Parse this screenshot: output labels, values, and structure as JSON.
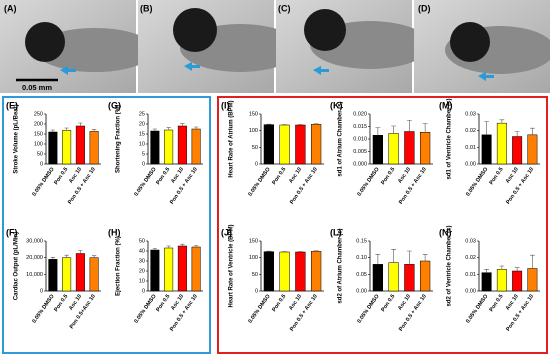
{
  "panels": [
    "(A)",
    "(B)",
    "(C)",
    "(D)"
  ],
  "scale_bar": "0.05 mm",
  "chart_data": [
    {
      "type": "bar",
      "label": "(E)",
      "y_label": "Stroke Volume (pL/Beat)",
      "categories": [
        "0.05% DMSO",
        "Pon 0.5",
        "Asc 10",
        "Pon 0.5 + Asc 10"
      ],
      "values": [
        160,
        168,
        190,
        163
      ],
      "errors": [
        10,
        12,
        15,
        10
      ],
      "colors": [
        "#000000",
        "#ffff00",
        "#ff0000",
        "#ff7f00"
      ],
      "ylim": [
        0,
        250
      ],
      "yticks": [
        0,
        50,
        100,
        150,
        200,
        250
      ]
    },
    {
      "type": "bar",
      "label": "(G)",
      "y_label": "Shortening Fraction (%)",
      "categories": [
        "0.05% DMSO",
        "Pon 0.5",
        "Asc 10",
        "Pon 0.5 + Asc 10"
      ],
      "values": [
        16.5,
        17,
        19,
        17.5
      ],
      "errors": [
        1,
        1.2,
        1.2,
        1
      ],
      "colors": [
        "#000000",
        "#ffff00",
        "#ff0000",
        "#ff7f00"
      ],
      "ylim": [
        0,
        25
      ],
      "yticks": [
        0,
        5,
        10,
        15,
        20,
        25
      ]
    },
    {
      "type": "bar",
      "label": "(F)",
      "y_label": "Cardiac Output (pL/Min)",
      "categories": [
        "0.05% DMSO",
        "Pon 0.5",
        "Asc 10",
        "Pon 0.5+Asc 10"
      ],
      "values": [
        19000,
        20000,
        22500,
        20000
      ],
      "errors": [
        1200,
        1500,
        1800,
        1200
      ],
      "colors": [
        "#000000",
        "#ffff00",
        "#ff0000",
        "#ff7f00"
      ],
      "ylim": [
        0,
        30000
      ],
      "yticks": [
        0,
        {
          "value": 10000,
          "label": "10,000"
        },
        {
          "value": 20000,
          "label": "20,000"
        },
        {
          "value": 30000,
          "label": "30,000"
        }
      ]
    },
    {
      "type": "bar",
      "label": "(H)",
      "y_label": "Ejection Fraction (%)",
      "categories": [
        "0.05% DMSO",
        "Pon 0.5",
        "Asc 10",
        "Pon 0.5 + Asc 10"
      ],
      "values": [
        41,
        43,
        45,
        44
      ],
      "errors": [
        1.5,
        2,
        1.8,
        1.5
      ],
      "colors": [
        "#000000",
        "#ffff00",
        "#ff0000",
        "#ff7f00"
      ],
      "ylim": [
        0,
        50
      ],
      "yticks": [
        0,
        10,
        20,
        30,
        40,
        50
      ]
    },
    {
      "type": "bar",
      "label": "(I)",
      "y_label": "Heart Rate of Atrium (BPM)",
      "categories": [
        "0.05% DMSO",
        "Pon 0.5",
        "Asc 10",
        "Pon 0.5 + Asc 10"
      ],
      "values": [
        118,
        117,
        117,
        119
      ],
      "errors": [
        1.5,
        1.5,
        1.5,
        1.5
      ],
      "colors": [
        "#000000",
        "#ffff00",
        "#ff0000",
        "#ff7f00"
      ],
      "ylim": [
        0,
        150
      ],
      "yticks": [
        0,
        50,
        100,
        150
      ]
    },
    {
      "type": "bar",
      "label": "(K)",
      "y_label": "sd1 of Atrium Chamber (s)",
      "categories": [
        "0.05% DMSO",
        "Pon 0.5",
        "Asc 10",
        "Pon 0.5 + Asc 10"
      ],
      "values": [
        0.0115,
        0.0122,
        0.013,
        0.0127
      ],
      "errors": [
        0.003,
        0.003,
        0.0045,
        0.0035
      ],
      "colors": [
        "#000000",
        "#ffff00",
        "#ff0000",
        "#ff7f00"
      ],
      "ylim": [
        0,
        0.02
      ],
      "yticks": [
        {
          "value": 0,
          "label": "0.000"
        },
        0.005,
        {
          "value": 0.01,
          "label": "0.010"
        },
        0.015,
        {
          "value": 0.02,
          "label": "0.020"
        }
      ]
    },
    {
      "type": "bar",
      "label": "(M)",
      "y_label": "sd1 of Ventricle Chamber (s)",
      "categories": [
        "0.05% DMSO",
        "Pon 0.5",
        "Asc 10",
        "Pon 0.5 + Asc 10"
      ],
      "values": [
        0.0175,
        0.0245,
        0.0165,
        0.0175
      ],
      "errors": [
        0.008,
        0.002,
        0.003,
        0.004
      ],
      "colors": [
        "#000000",
        "#ffff00",
        "#ff0000",
        "#ff7f00"
      ],
      "ylim": [
        0,
        0.03
      ],
      "yticks": [
        {
          "value": 0,
          "label": "0.00"
        },
        0.01,
        0.02,
        0.03
      ]
    },
    {
      "type": "bar",
      "label": "(J)",
      "y_label": "Heart Rate of Ventricle (BPM)",
      "categories": [
        "0.05% DMSO",
        "Pon 0.5",
        "Asc 10",
        "Pon 0.5 + Asc 10"
      ],
      "values": [
        118,
        117,
        117,
        119
      ],
      "errors": [
        1.5,
        1.5,
        1.5,
        1.5
      ],
      "colors": [
        "#000000",
        "#ffff00",
        "#ff0000",
        "#ff7f00"
      ],
      "ylim": [
        0,
        150
      ],
      "yticks": [
        0,
        50,
        100,
        150
      ]
    },
    {
      "type": "bar",
      "label": "(L)",
      "y_label": "sd2 of Atrium Chamber (s)",
      "categories": [
        "0.05% DMSO",
        "Pon 0.5",
        "Asc 10",
        "Pon 0.5 + Asc 10"
      ],
      "values": [
        0.08,
        0.085,
        0.08,
        0.09
      ],
      "errors": [
        0.03,
        0.04,
        0.04,
        0.02
      ],
      "colors": [
        "#000000",
        "#ffff00",
        "#ff0000",
        "#ff7f00"
      ],
      "ylim": [
        0,
        0.15
      ],
      "yticks": [
        {
          "value": 0,
          "label": "0.00"
        },
        0.05,
        {
          "value": 0.1,
          "label": "0.10"
        },
        0.15
      ]
    },
    {
      "type": "bar",
      "label": "(N)",
      "y_label": "sd2  of  Ventricle Chamber (s)",
      "categories": [
        "0.05% DMSO",
        "Pon 0.5",
        "Asc 10",
        "Pon 0.5 + Asc 10"
      ],
      "values": [
        0.011,
        0.013,
        0.012,
        0.0135
      ],
      "errors": [
        0.002,
        0.002,
        0.002,
        0.008
      ],
      "colors": [
        "#000000",
        "#ffff00",
        "#ff0000",
        "#ff7f00"
      ],
      "ylim": [
        0,
        0.03
      ],
      "yticks": [
        {
          "value": 0,
          "label": "0.00"
        },
        0.01,
        0.02,
        0.03
      ]
    }
  ]
}
